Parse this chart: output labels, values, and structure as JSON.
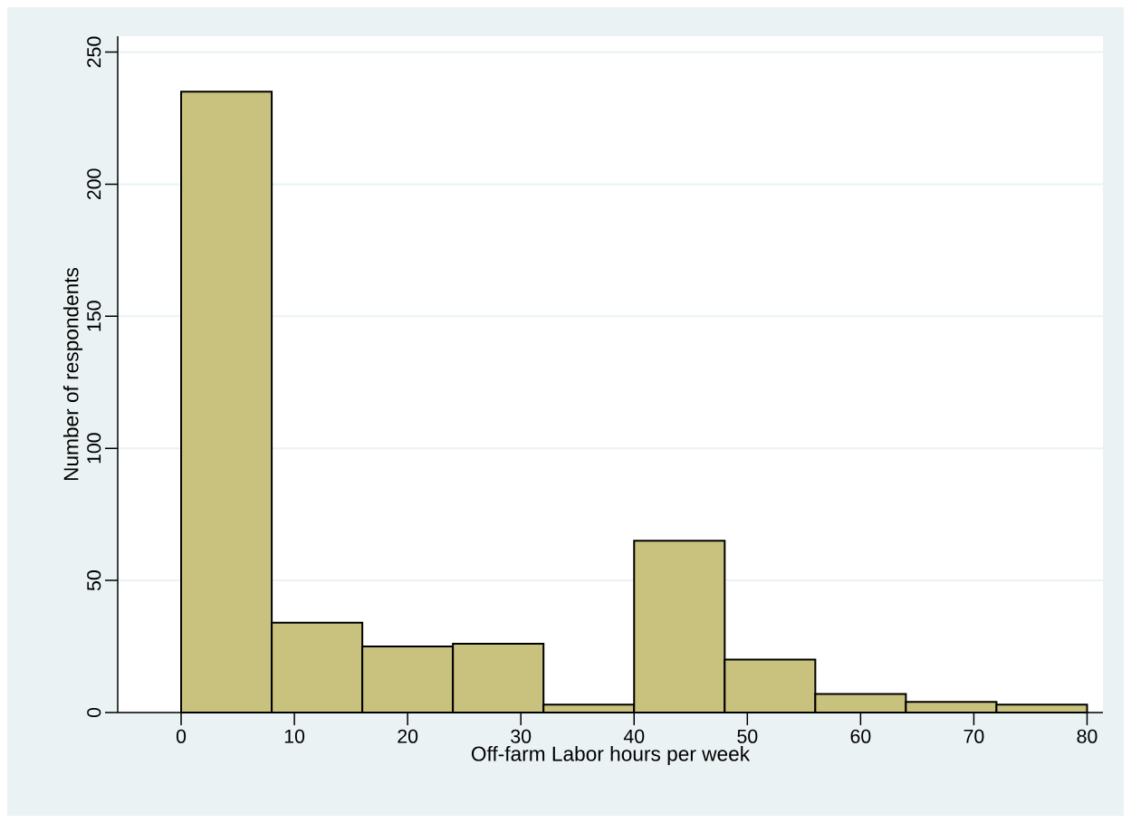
{
  "chart_data": {
    "type": "histogram",
    "xlabel": "Off-farm Labor hours per week",
    "ylabel": "Number of respondents",
    "bins": [
      0,
      8,
      16,
      24,
      32,
      40,
      48,
      56,
      64,
      72,
      80
    ],
    "values": [
      235,
      34,
      25,
      26,
      3,
      65,
      20,
      7,
      4,
      3
    ],
    "color": "#c9c27e",
    "xlim": [
      -5.6,
      81.4
    ],
    "ylim": [
      0,
      256
    ],
    "xticks": [
      0,
      10,
      20,
      30,
      40,
      50,
      60,
      70,
      80
    ],
    "yticks": [
      0,
      50,
      100,
      150,
      200,
      250
    ],
    "grid": "y"
  }
}
